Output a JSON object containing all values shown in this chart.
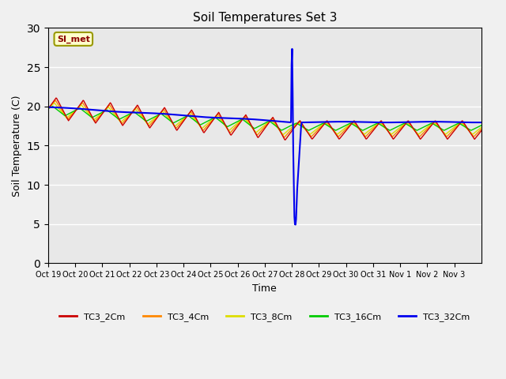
{
  "title": "Soil Temperatures Set 3",
  "xlabel": "Time",
  "ylabel": "Soil Temperature (C)",
  "ylim": [
    0,
    30
  ],
  "background_color": "#e8e8e8",
  "figure_color": "#f0f0f0",
  "grid_color": "#ffffff",
  "annotation_text": "SI_met",
  "tick_labels": [
    "Oct 19",
    "Oct 20",
    "Oct 21",
    "Oct 22",
    "Oct 23",
    "Oct 24",
    "Oct 25",
    "Oct 26",
    "Oct 27",
    "Oct 28",
    "Oct 29",
    "Oct 30",
    "Oct 31",
    "Nov 1",
    "Nov 2",
    "Nov 3"
  ],
  "series": {
    "TC3_2Cm": {
      "color": "#cc0000",
      "lw": 1.0
    },
    "TC3_4Cm": {
      "color": "#ff8800",
      "lw": 1.0
    },
    "TC3_8Cm": {
      "color": "#dddd00",
      "lw": 1.0
    },
    "TC3_16Cm": {
      "color": "#00cc00",
      "lw": 1.0
    },
    "TC3_32Cm": {
      "color": "#0000ee",
      "lw": 1.5
    }
  }
}
